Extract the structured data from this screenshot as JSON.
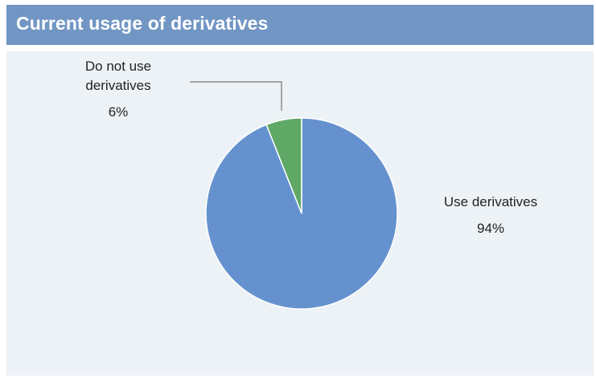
{
  "header": {
    "title": "Current usage of derivatives"
  },
  "chart_data": {
    "type": "pie",
    "title": "Current usage of derivatives",
    "slices": [
      {
        "name": "Use derivatives",
        "value": 94,
        "label": "94%",
        "color": "#6592cf"
      },
      {
        "name": "Do not use derivatives",
        "value": 6,
        "label": "6%",
        "color": "#5fa866"
      }
    ],
    "labels": {
      "small_line1": "Do not use",
      "small_line2": "derivatives",
      "small_pct": "6%",
      "big_line1": "Use derivatives",
      "big_pct": "94%"
    },
    "slice_border_color": "#ffffff",
    "background": "#ecf2f6",
    "leader_line_color": "#555555"
  }
}
